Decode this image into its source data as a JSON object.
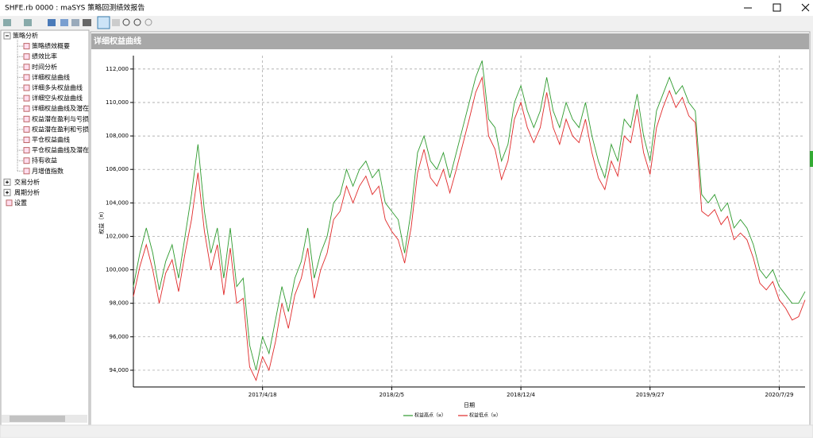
{
  "window": {
    "title": "SHFE.rb 0000 : maSYS 策略回测绩效报告"
  },
  "tree": [
    {
      "label": "策略分析",
      "children": [
        "策略绩效概要",
        "绩效比率",
        "时间分析",
        "详细权益曲线",
        "详细多头权益曲线",
        "详细空头权益曲线",
        "详细权益曲线及潜在",
        "权益潜在盈利与亏损",
        "权益潜在盈利和亏损",
        "平仓权益曲线",
        "平仓权益曲线及潜在",
        "持有收益",
        "月增值指数"
      ]
    },
    {
      "label": "交易分析"
    },
    {
      "label": "周期分析"
    },
    {
      "label": "设置"
    }
  ],
  "panel": {
    "title": "详细权益曲线"
  },
  "chart_data": {
    "type": "line",
    "x_label": "日期",
    "y_label": "权益（¤）",
    "categories": [
      null,
      null,
      null,
      null,
      null,
      null,
      null,
      null,
      null,
      null,
      null,
      null,
      null,
      null,
      null,
      null,
      null,
      null,
      null,
      null,
      "2017/4/18",
      null,
      null,
      null,
      null,
      null,
      null,
      null,
      null,
      null,
      null,
      null,
      null,
      null,
      null,
      null,
      null,
      null,
      null,
      null,
      "2018/2/5",
      null,
      null,
      null,
      null,
      null,
      null,
      null,
      null,
      null,
      null,
      null,
      null,
      null,
      null,
      null,
      null,
      null,
      null,
      null,
      "2018/12/4",
      null,
      null,
      null,
      null,
      null,
      null,
      null,
      null,
      null,
      null,
      null,
      null,
      null,
      null,
      null,
      null,
      null,
      null,
      null,
      "2019/9/27",
      null,
      null,
      null,
      null,
      null,
      null,
      null,
      null,
      null,
      null,
      null,
      null,
      null,
      null,
      null,
      null,
      null,
      null,
      null,
      "2020/7/29",
      null,
      null,
      null,
      null
    ],
    "series": [
      {
        "name": "权益高点（¤）",
        "color": "#2e9a2e",
        "values": [
          99000,
          101000,
          102500,
          101000,
          98800,
          100500,
          101500,
          99500,
          102000,
          104500,
          107500,
          103500,
          101000,
          102500,
          99500,
          102500,
          99000,
          99500,
          95500,
          94000,
          96000,
          95000,
          97000,
          99000,
          97500,
          99500,
          100500,
          102500,
          99500,
          101000,
          102000,
          104000,
          104500,
          106000,
          105000,
          106000,
          106500,
          105500,
          106000,
          104000,
          103500,
          103000,
          101000,
          103500,
          107000,
          108000,
          106500,
          106000,
          107000,
          105500,
          107000,
          108500,
          110000,
          111500,
          112500,
          109000,
          108500,
          106500,
          107500,
          110000,
          111000,
          109500,
          108500,
          109500,
          111500,
          109500,
          108500,
          110000,
          109000,
          108500,
          110000,
          108000,
          106500,
          105500,
          107500,
          106500,
          109000,
          108500,
          110500,
          108000,
          106500,
          109500,
          110500,
          111500,
          110500,
          111000,
          110000,
          109500,
          104500,
          104000,
          104500,
          103500,
          104000,
          102500,
          103000,
          102500,
          101500,
          100000,
          99500,
          100000,
          99000,
          98500,
          98000,
          98000,
          98700
        ]
      },
      {
        "name": "权益低点（¤）",
        "color": "#e02828",
        "values": [
          98400,
          100200,
          101500,
          100000,
          98000,
          99800,
          100600,
          98700,
          101000,
          103000,
          105800,
          102300,
          100000,
          101500,
          98500,
          101300,
          98000,
          98300,
          94200,
          93400,
          94800,
          94000,
          95700,
          98000,
          96500,
          98500,
          99500,
          101300,
          98300,
          100000,
          101000,
          103000,
          103500,
          105000,
          104000,
          105000,
          105600,
          104500,
          105000,
          103000,
          102300,
          101800,
          100400,
          102500,
          105800,
          107200,
          105500,
          105000,
          106000,
          104600,
          106000,
          107500,
          109000,
          110600,
          111500,
          108000,
          107200,
          105400,
          106500,
          109000,
          110000,
          108500,
          107600,
          108500,
          110600,
          108500,
          107500,
          109000,
          108000,
          107600,
          109000,
          107000,
          105500,
          104800,
          106500,
          105600,
          108000,
          107600,
          109600,
          107000,
          105700,
          108500,
          109700,
          110700,
          109700,
          110300,
          109200,
          108800,
          103500,
          103200,
          103600,
          102700,
          103200,
          101800,
          102200,
          101800,
          100700,
          99200,
          98800,
          99300,
          98200,
          97700,
          97000,
          97200,
          98200
        ]
      }
    ],
    "ylim": [
      93000,
      112800
    ],
    "yticks": [
      {
        "value": 94000,
        "label": "94,000"
      },
      {
        "value": 96000,
        "label": "96,000"
      },
      {
        "value": 98000,
        "label": "98,000"
      },
      {
        "value": 100000,
        "label": "100,000"
      },
      {
        "value": 102000,
        "label": "102,000"
      },
      {
        "value": 104000,
        "label": "104,000"
      },
      {
        "value": 106000,
        "label": "106,000"
      },
      {
        "value": 108000,
        "label": "108,000"
      },
      {
        "value": 110000,
        "label": "110,000"
      },
      {
        "value": 112000,
        "label": "112,000"
      }
    ],
    "grid": true
  }
}
